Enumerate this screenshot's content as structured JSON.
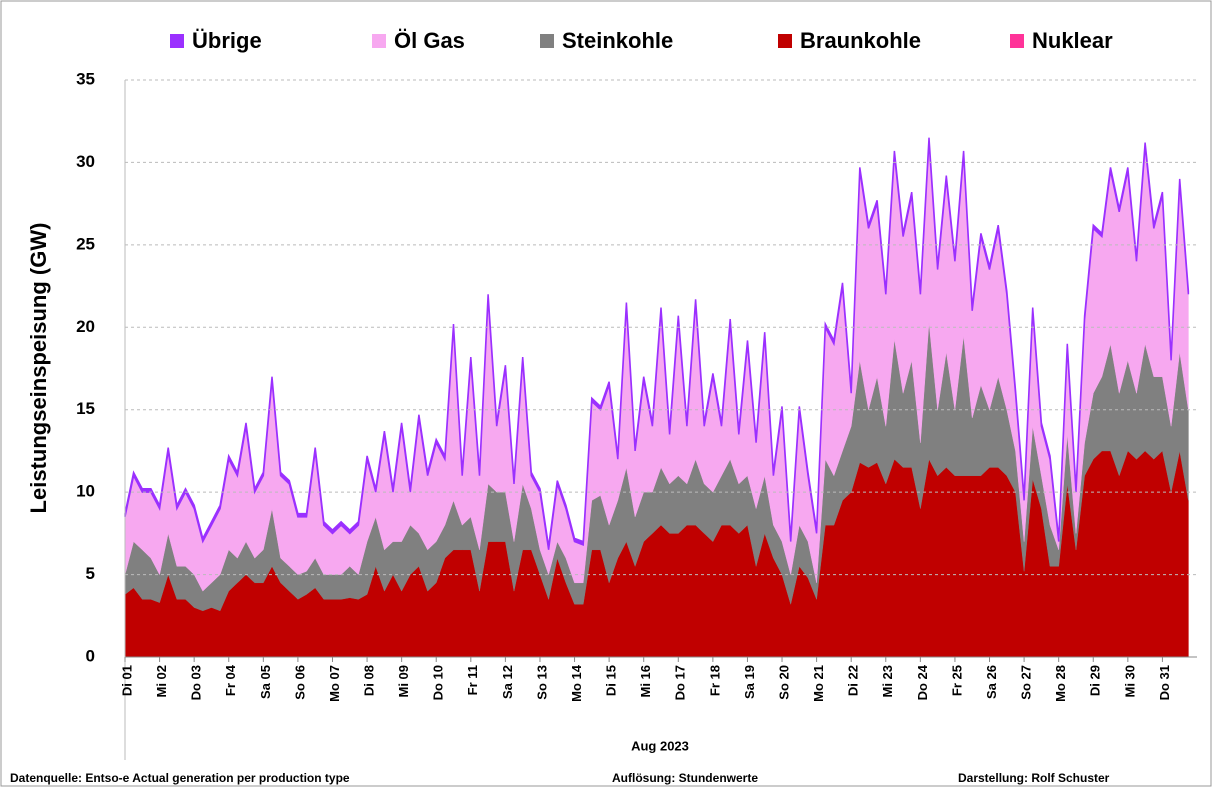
{
  "chart_data": {
    "type": "stacked_area",
    "ylabel": "Leistungseinspeisung (GW)",
    "xlabel": "Aug 2023",
    "source": "Datenquelle: Entso-e  Actual generation per production type",
    "resolution": "Auflösung: Stundenwerte",
    "author": "Darstellung:  Rolf Schuster",
    "ylim": [
      0,
      35
    ],
    "yticks": [
      0,
      5,
      10,
      15,
      20,
      25,
      30,
      35
    ],
    "grid": true,
    "xlim": [
      1,
      32
    ],
    "xticks": [
      {
        "value": 1,
        "label": "Di 01"
      },
      {
        "value": 2,
        "label": "Mi 02"
      },
      {
        "value": 3,
        "label": "Do 03"
      },
      {
        "value": 4,
        "label": "Fr 04"
      },
      {
        "value": 5,
        "label": "Sa 05"
      },
      {
        "value": 6,
        "label": "So 06"
      },
      {
        "value": 7,
        "label": "Mo 07"
      },
      {
        "value": 8,
        "label": "Di 08"
      },
      {
        "value": 9,
        "label": "Mi 09"
      },
      {
        "value": 10,
        "label": "Do 10"
      },
      {
        "value": 11,
        "label": "Fr 11"
      },
      {
        "value": 12,
        "label": "Sa 12"
      },
      {
        "value": 13,
        "label": "So 13"
      },
      {
        "value": 14,
        "label": "Mo 14"
      },
      {
        "value": 15,
        "label": "Di 15"
      },
      {
        "value": 16,
        "label": "Mi 16"
      },
      {
        "value": 17,
        "label": "Do 17"
      },
      {
        "value": 18,
        "label": "Fr 18"
      },
      {
        "value": 19,
        "label": "Sa 19"
      },
      {
        "value": 20,
        "label": "So 20"
      },
      {
        "value": 21,
        "label": "Mo 21"
      },
      {
        "value": 22,
        "label": "Di 22"
      },
      {
        "value": 23,
        "label": "Mi 23"
      },
      {
        "value": 24,
        "label": "Do 24"
      },
      {
        "value": 25,
        "label": "Fr 25"
      },
      {
        "value": 26,
        "label": "Sa 26"
      },
      {
        "value": 27,
        "label": "So 27"
      },
      {
        "value": 28,
        "label": "Mo 28"
      },
      {
        "value": 29,
        "label": "Di 29"
      },
      {
        "value": 30,
        "label": "Mi 30"
      },
      {
        "value": 31,
        "label": "Do 31"
      }
    ],
    "x": [
      1,
      1.25,
      1.5,
      1.75,
      2,
      2.25,
      2.5,
      2.75,
      3,
      3.25,
      3.5,
      3.75,
      4,
      4.25,
      4.5,
      4.75,
      5,
      5.25,
      5.5,
      5.75,
      6,
      6.25,
      6.5,
      6.75,
      7,
      7.25,
      7.5,
      7.75,
      8,
      8.25,
      8.5,
      8.75,
      9,
      9.25,
      9.5,
      9.75,
      10,
      10.25,
      10.5,
      10.75,
      11,
      11.25,
      11.5,
      11.75,
      12,
      12.25,
      12.5,
      12.75,
      13,
      13.25,
      13.5,
      13.75,
      14,
      14.25,
      14.5,
      14.75,
      15,
      15.25,
      15.5,
      15.75,
      16,
      16.25,
      16.5,
      16.75,
      17,
      17.25,
      17.5,
      17.75,
      18,
      18.25,
      18.5,
      18.75,
      19,
      19.25,
      19.5,
      19.75,
      20,
      20.25,
      20.5,
      20.75,
      21,
      21.25,
      21.5,
      21.75,
      22,
      22.25,
      22.5,
      22.75,
      23,
      23.25,
      23.5,
      23.75,
      24,
      24.25,
      24.5,
      24.75,
      25,
      25.25,
      25.5,
      25.75,
      26,
      26.25,
      26.5,
      26.75,
      27,
      27.25,
      27.5,
      27.75,
      28,
      28.25,
      28.5,
      28.75,
      29,
      29.25,
      29.5,
      29.75,
      30,
      30.25,
      30.5,
      30.75,
      31,
      31.25,
      31.5,
      31.75
    ],
    "series": [
      {
        "name": "Übrige",
        "color": "#9b30ff",
        "values": [
          0.2,
          0.2,
          0.2,
          0.2,
          0.2,
          0.2,
          0.2,
          0.2,
          0.2,
          0.2,
          0.2,
          0.2,
          0.2,
          0.2,
          0.2,
          0.2,
          0.2,
          0.2,
          0.2,
          0.2,
          0.2,
          0.2,
          0.2,
          0.2,
          0.2,
          0.2,
          0.2,
          0.2,
          0.2,
          0.2,
          0.2,
          0.2,
          0.2,
          0.2,
          0.2,
          0.2,
          0.2,
          0.2,
          0.2,
          0.2,
          0.2,
          0.2,
          0.2,
          0.2,
          0.2,
          0.2,
          0.2,
          0.2,
          0.2,
          0.2,
          0.2,
          0.2,
          0.2,
          0.2,
          0.2,
          0.2,
          0.2,
          0.2,
          0.2,
          0.2,
          0.2,
          0.2,
          0.2,
          0.2,
          0.2,
          0.2,
          0.2,
          0.2,
          0.2,
          0.2,
          0.2,
          0.2,
          0.2,
          0.2,
          0.2,
          0.2,
          0.2,
          0.2,
          0.2,
          0.2,
          0.2,
          0.2,
          0.2,
          0.2,
          0.2,
          0.2,
          0.2,
          0.2,
          0.2,
          0.2,
          0.2,
          0.2,
          0.2,
          0.2,
          0.2,
          0.2,
          0.2,
          0.2,
          0.2,
          0.2,
          0.2,
          0.2,
          0.2,
          0.2,
          0.2,
          0.2,
          0.2,
          0.2,
          0.2,
          0.2,
          0.2,
          0.2,
          0.2,
          0.2,
          0.2,
          0.2,
          0.2,
          0.2,
          0.2,
          0.2,
          0.2,
          0.2,
          0.2,
          0.2
        ]
      },
      {
        "name": "Öl Gas",
        "color": "#f7a8f0",
        "values": [
          3.5,
          4,
          3.5,
          4,
          4,
          5,
          3.5,
          4.5,
          4,
          3,
          3.5,
          4,
          5.5,
          5,
          7,
          4,
          4.5,
          7.8,
          5,
          5,
          3.5,
          3.3,
          6.5,
          3,
          2.5,
          3,
          2,
          3,
          5,
          1.5,
          7,
          3,
          7,
          2,
          7,
          4.5,
          6,
          4,
          10.5,
          3,
          9.5,
          4.5,
          11.3,
          4,
          7.5,
          3.5,
          7.5,
          2,
          3.5,
          1.5,
          3.5,
          3,
          2.5,
          2.3,
          6,
          5.2,
          8.5,
          2.5,
          9.8,
          4,
          6.8,
          4,
          9.5,
          3,
          9.5,
          3.5,
          9.5,
          3.5,
          7,
          3,
          8.3,
          3,
          8,
          4,
          8.5,
          3,
          8,
          2,
          7,
          4,
          3,
          8,
          8,
          10,
          2,
          11.5,
          11,
          10.5,
          8,
          11.2,
          9.5,
          10,
          9,
          11,
          8.5,
          10.5,
          9,
          11,
          6.5,
          9,
          8.5,
          9,
          7,
          3.5,
          2.5,
          7,
          3,
          4,
          0.5,
          5.3,
          2.5,
          7.5,
          10,
          8.5,
          10.5,
          11,
          11.5,
          8,
          12,
          9,
          11,
          4,
          10.3,
          7
        ]
      },
      {
        "name": "Steinkohle",
        "color": "#808080",
        "values": [
          1.2,
          2.8,
          3,
          2.5,
          1.7,
          2.5,
          2,
          2,
          2,
          1.2,
          1.5,
          2.2,
          2.5,
          1.5,
          2,
          1.5,
          2,
          3.5,
          1.5,
          1.5,
          1.5,
          1.4,
          1.8,
          1.5,
          1.5,
          1.5,
          1.9,
          1.5,
          3.2,
          3,
          2.5,
          2,
          3,
          3,
          2,
          2.5,
          2.5,
          2,
          3,
          1.5,
          2,
          2.5,
          3.5,
          3,
          3,
          3,
          4,
          2.5,
          1.5,
          1.5,
          1,
          1.5,
          1.3,
          1.3,
          3,
          3.3,
          3.5,
          3.5,
          4.5,
          3,
          3,
          2.5,
          3.5,
          3,
          3.5,
          2.5,
          4,
          3,
          3,
          3,
          4,
          3,
          3,
          3.5,
          3.5,
          2,
          2,
          1.8,
          2.5,
          2.2,
          1,
          4,
          3,
          3,
          4,
          6.2,
          3.5,
          5.2,
          3.5,
          7.3,
          4.5,
          6.5,
          4,
          8.3,
          4,
          7,
          4,
          8.5,
          3.5,
          5.5,
          3.5,
          5.5,
          4,
          2.5,
          1.8,
          3.2,
          2,
          2.5,
          1,
          3,
          1,
          2,
          4,
          4.5,
          6.5,
          5,
          5.5,
          4,
          6.5,
          5,
          4.5,
          4,
          6,
          5.5
        ]
      },
      {
        "name": "Braunkohle",
        "color": "#c00000",
        "values": [
          3.8,
          4.2,
          3.5,
          3.5,
          3.3,
          5,
          3.5,
          3.5,
          3,
          2.8,
          3,
          2.8,
          4,
          4.5,
          5,
          4.5,
          4.5,
          5.5,
          4.5,
          4,
          3.5,
          3.8,
          4.2,
          3.5,
          3.5,
          3.5,
          3.6,
          3.5,
          3.8,
          5.5,
          4,
          5,
          4,
          5,
          5.5,
          4,
          4.5,
          6,
          6.5,
          6.5,
          6.5,
          4,
          7,
          7,
          7,
          4,
          6.5,
          6.5,
          5,
          3.5,
          6,
          4.5,
          3.2,
          3.2,
          6.5,
          6.5,
          4.5,
          6,
          7,
          5.5,
          7,
          7.5,
          8,
          7.5,
          7.5,
          8,
          8,
          7.5,
          7,
          8,
          8,
          7.5,
          8,
          5.5,
          7.5,
          6,
          5,
          3.2,
          5.5,
          4.8,
          3.5,
          8,
          8,
          9.5,
          10,
          11.8,
          11.5,
          11.8,
          10.5,
          12,
          11.5,
          11.5,
          9,
          12,
          11,
          11.5,
          11,
          11,
          11,
          11,
          11.5,
          11.5,
          11,
          10,
          5.2,
          10.8,
          9,
          5.5,
          5.5,
          10.5,
          6.5,
          11,
          12,
          12.5,
          12.5,
          11,
          12.5,
          12,
          12.5,
          12,
          12.5,
          10,
          12.5,
          9.5
        ]
      },
      {
        "name": "Nuklear",
        "color": "#ff3399",
        "values": [
          0,
          0,
          0,
          0,
          0,
          0,
          0,
          0,
          0,
          0,
          0,
          0,
          0,
          0,
          0,
          0,
          0,
          0,
          0,
          0,
          0,
          0,
          0,
          0,
          0,
          0,
          0,
          0,
          0,
          0,
          0,
          0,
          0,
          0,
          0,
          0,
          0,
          0,
          0,
          0,
          0,
          0,
          0,
          0,
          0,
          0,
          0,
          0,
          0,
          0,
          0,
          0,
          0,
          0,
          0,
          0,
          0,
          0,
          0,
          0,
          0,
          0,
          0,
          0,
          0,
          0,
          0,
          0,
          0,
          0,
          0,
          0,
          0,
          0,
          0,
          0,
          0,
          0,
          0,
          0,
          0,
          0,
          0,
          0,
          0,
          0,
          0,
          0,
          0,
          0,
          0,
          0,
          0,
          0,
          0,
          0,
          0,
          0,
          0,
          0,
          0,
          0,
          0,
          0,
          0,
          0,
          0,
          0,
          0,
          0,
          0,
          0,
          0,
          0,
          0,
          0,
          0,
          0,
          0,
          0,
          0,
          0,
          0,
          0
        ]
      }
    ]
  }
}
